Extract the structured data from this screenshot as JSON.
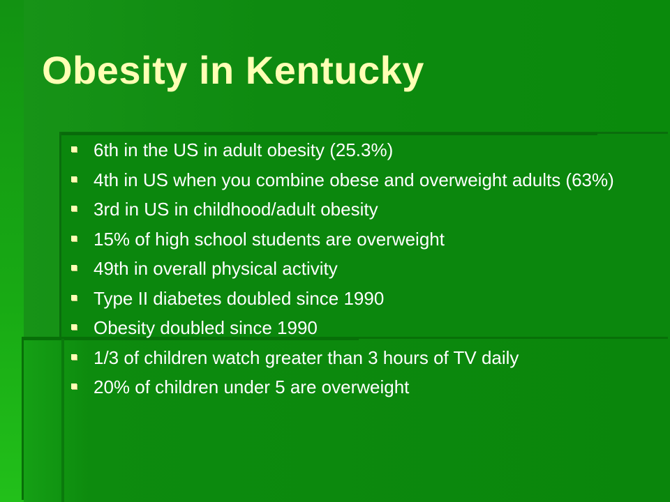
{
  "slide": {
    "title": "Obesity in Kentucky",
    "bullets": [
      {
        "text": "6th in the US in adult obesity (25.3%)"
      },
      {
        "text": "4th in US when you combine obese and overweight adults (63%)"
      },
      {
        "text": "3rd in US in childhood/adult obesity"
      },
      {
        "text": "15% of high school students are overweight"
      },
      {
        "text": "49th in overall physical activity"
      },
      {
        "text": "Type II diabetes doubled since 1990"
      },
      {
        "text": "Obesity doubled since 1990"
      },
      {
        "text": "1/3 of children watch greater than 3 hours of TV daily"
      },
      {
        "text": "20% of children under 5 are overweight"
      }
    ]
  },
  "colors": {
    "background": "#0f8a12",
    "title": "#ffffb4",
    "body_text": "#ffffff",
    "bullet_marker": "#ffffb4"
  },
  "icons": {
    "bullet": "square-bullet-icon"
  }
}
